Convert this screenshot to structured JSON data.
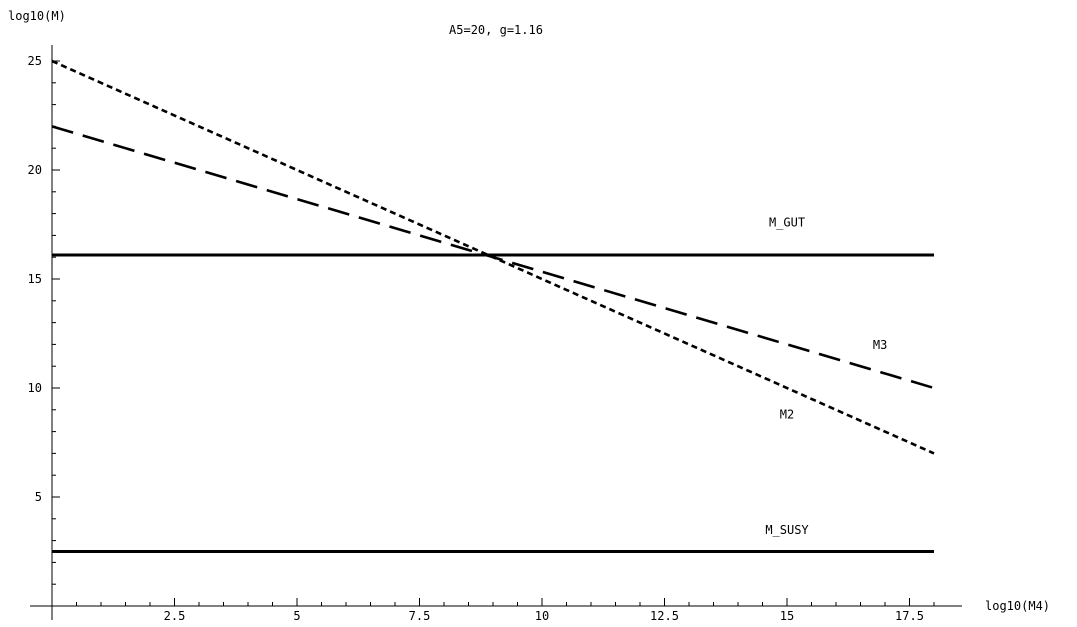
{
  "chart_data": {
    "type": "line",
    "title": "A5=20, g=1.16",
    "xlabel": "log10(M4)",
    "ylabel": "log10(M)",
    "xlim": [
      -1.5,
      18.5
    ],
    "ylim": [
      -0.5,
      25.5
    ],
    "xticks": [
      2.5,
      5,
      7.5,
      10,
      12.5,
      15,
      17.5
    ],
    "xtick_labels": [
      "2.5",
      "5",
      "7.5",
      "10",
      "12.5",
      "15",
      "17.5"
    ],
    "yticks": [
      5,
      10,
      15,
      20,
      25
    ],
    "ytick_labels": [
      "5",
      "10",
      "15",
      "20",
      "25"
    ],
    "grid": false,
    "series": [
      {
        "name": "M2",
        "style": "dotted",
        "x": [
          0,
          18
        ],
        "y": [
          25,
          7
        ]
      },
      {
        "name": "M3",
        "style": "dashed",
        "x": [
          0,
          18
        ],
        "y": [
          22,
          10
        ]
      },
      {
        "name": "M_GUT",
        "style": "solid",
        "x": [
          0,
          18
        ],
        "y": [
          16.1,
          16.1
        ]
      },
      {
        "name": "M_SUSY",
        "style": "solid",
        "x": [
          0,
          18
        ],
        "y": [
          2.5,
          2.5
        ]
      }
    ],
    "annotations": [
      {
        "text": "M_GUT",
        "x": 15,
        "y": 17.4
      },
      {
        "text": "M3",
        "x": 16.9,
        "y": 11.8
      },
      {
        "text": "M2",
        "x": 15,
        "y": 8.6
      },
      {
        "text": "M_SUSY",
        "x": 15,
        "y": 3.3
      }
    ]
  }
}
